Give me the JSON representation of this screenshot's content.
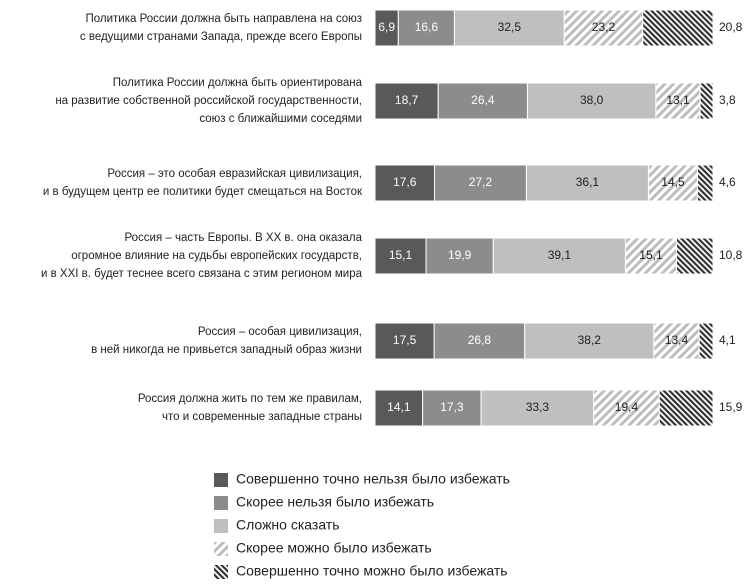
{
  "chart_data": {
    "type": "stacked_barh",
    "categories": [
      [
        "Политика России должна быть направлена на союз",
        "с ведущими странами Запада, прежде всего Европы"
      ],
      [
        "Политика России должна быть ориентирована",
        "на развитие собственной российской государственности,",
        "союз с ближайшими соседями"
      ],
      [
        "Россия – это особая евразийская цивилизация,",
        "и в будущем центр ее политики будет смещаться на Восток"
      ],
      [
        "Россия – часть Европы. В XX в. она оказала",
        "огромное влияние на судьбы европейских государств,",
        "и в XXI в. будет теснее всего связана  с этим регионом мира"
      ],
      [
        "Россия – особая цивилизация,",
        "в ней никогда не привьется западный образ жизни"
      ],
      [
        "Россия должна жить по тем же правилам,",
        "что и современные западные страны"
      ]
    ],
    "series": [
      {
        "name": "Совершенно точно нельзя было избежать",
        "color": "#595959",
        "values": [
          6.9,
          18.7,
          17.6,
          15.1,
          17.5,
          14.1
        ],
        "value_labels": [
          "6,9",
          "18,7",
          "17,6",
          "15,1",
          "17,5",
          "14,1"
        ]
      },
      {
        "name": "Скорее нельзя было избежать",
        "color": "#8c8c8c",
        "values": [
          16.6,
          26.4,
          27.2,
          19.9,
          26.8,
          17.3
        ],
        "value_labels": [
          "16,6",
          "26,4",
          "27,2",
          "19,9",
          "26,8",
          "17,3"
        ]
      },
      {
        "name": "Сложно сказать",
        "color": "#bfbfbf",
        "values": [
          32.5,
          38.0,
          36.1,
          39.1,
          38.2,
          33.3
        ],
        "value_labels": [
          "32,5",
          "38,0",
          "36,1",
          "39,1",
          "38,2",
          "33,3"
        ]
      },
      {
        "name": "Скорее можно было избежать",
        "color": "#b5b5b5",
        "values": [
          23.2,
          13.1,
          14.5,
          15.1,
          13.4,
          19.4
        ],
        "value_labels": [
          "23,2",
          "13,1",
          "14,5",
          "15,1",
          "13,4",
          "19,4"
        ]
      },
      {
        "name": "Совершенно точно можно было избежать",
        "color": "#333333",
        "values": [
          20.8,
          3.8,
          4.6,
          10.8,
          4.1,
          15.9
        ],
        "value_labels": [
          "20,8",
          "3,8",
          "4,6",
          "10,8",
          "4,1",
          "15,9"
        ]
      }
    ]
  }
}
